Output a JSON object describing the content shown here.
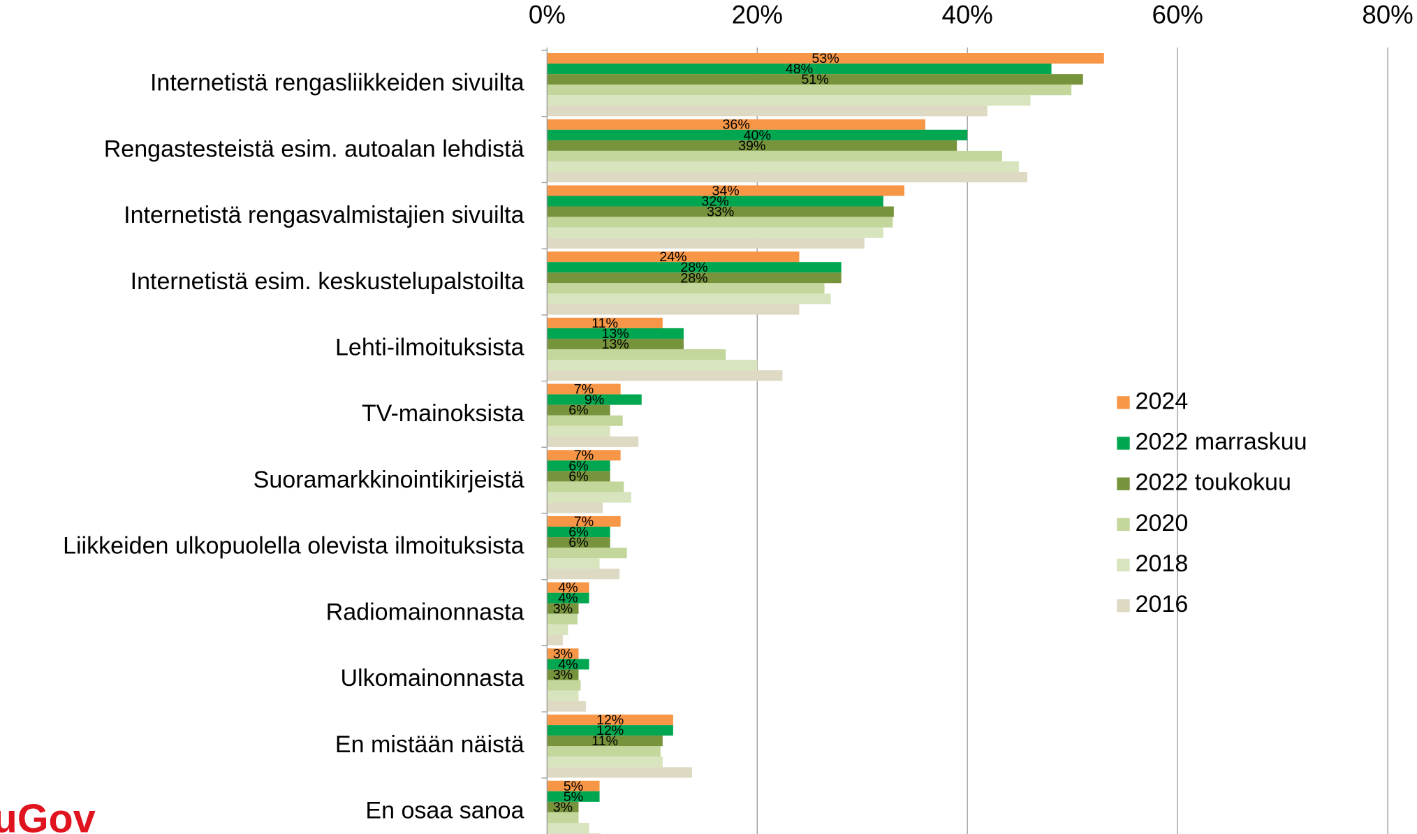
{
  "chart_data": {
    "type": "hbar",
    "categories": [
      "Internetistä rengasliikkeiden sivuilta",
      "Rengastesteistä esim. autoalan lehdistä",
      "Internetistä rengasvalmistajien sivuilta",
      "Internetistä esim. keskustelupalstoilta",
      "Lehti-ilmoituksista",
      "TV-mainoksista",
      "Suoramarkkinointikirjeistä",
      "Liikkeiden ulkopuolella olevista ilmoituksista",
      "Radiomainonnasta",
      "Ulkomainonnasta",
      "En mistään näistä",
      "En osaa sanoa"
    ],
    "series": [
      {
        "name": "2024",
        "color": "#f79646",
        "values": [
          53,
          36,
          34,
          24,
          11,
          7,
          7,
          7,
          4,
          3,
          12,
          5
        ],
        "value_labels": [
          "53%",
          "36%",
          "34%",
          "24%",
          "11%",
          "7%",
          "7%",
          "7%",
          "4%",
          "3%",
          "12%",
          "5%"
        ]
      },
      {
        "name": "2022 marraskuu",
        "color": "#00a650",
        "values": [
          48,
          40,
          32,
          28,
          13,
          9,
          6,
          6,
          4,
          4,
          12,
          5
        ],
        "value_labels": [
          "48%",
          "40%",
          "32%",
          "28%",
          "13%",
          "9%",
          "6%",
          "6%",
          "4%",
          "4%",
          "12%",
          "5%"
        ]
      },
      {
        "name": "2022 toukokuu",
        "color": "#77933c",
        "values": [
          51,
          39,
          33,
          28,
          13,
          6,
          6,
          6,
          3,
          3,
          11,
          3
        ],
        "value_labels": [
          "51%",
          "39%",
          "33%",
          "28%",
          "13%",
          "6%",
          "6%",
          "6%",
          "3%",
          "3%",
          "11%",
          "3%"
        ]
      },
      {
        "name": "2020",
        "color": "#c3d69b",
        "values": [
          49.9,
          43.3,
          32.9,
          26.4,
          17.0,
          7.2,
          7.3,
          7.6,
          2.9,
          3.2,
          10.8,
          3.0
        ]
      },
      {
        "name": "2018",
        "color": "#d7e4bd",
        "values": [
          46.0,
          44.9,
          32.0,
          27.0,
          20.0,
          6.0,
          8.0,
          5.0,
          2.0,
          3.0,
          11.0,
          4.0
        ]
      },
      {
        "name": "2016",
        "color": "#ddd9c3",
        "values": [
          41.9,
          45.7,
          30.2,
          24.0,
          22.4,
          8.7,
          5.3,
          6.9,
          1.5,
          3.7,
          13.8,
          5.1
        ]
      }
    ],
    "xlim": [
      0,
      80
    ],
    "xticks": [
      {
        "value": 0,
        "label": "0%"
      },
      {
        "value": 20,
        "label": "20%"
      },
      {
        "value": 40,
        "label": "40%"
      },
      {
        "value": 60,
        "label": "60%"
      },
      {
        "value": 80,
        "label": "80%"
      }
    ],
    "grid": true,
    "legend": "right"
  },
  "logo": "uGov"
}
